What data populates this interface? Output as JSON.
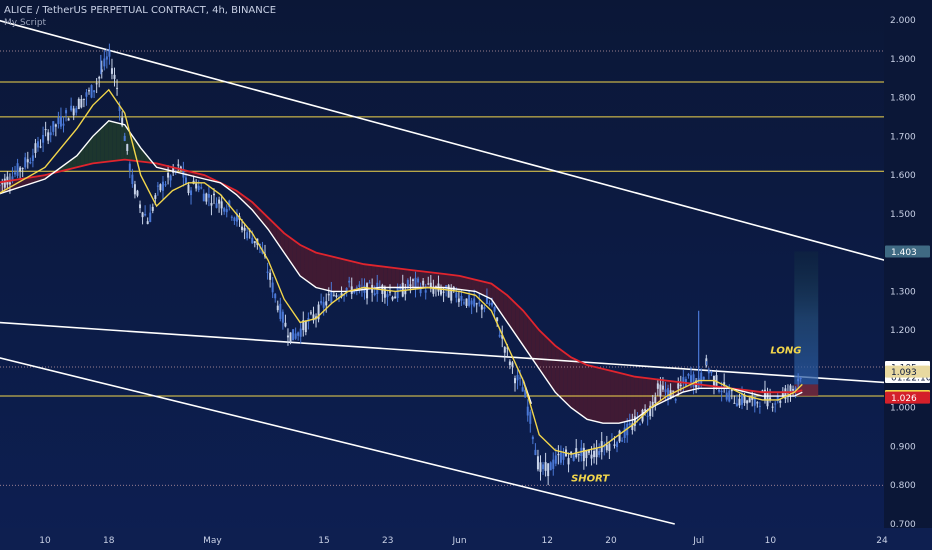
{
  "header": {
    "title": "ALICE / TetherUS PERPETUAL CONTRACT, 4h, BINANCE",
    "subtitle": "My Script"
  },
  "colors": {
    "background": "#0c1a3e",
    "level": "#f2d64b",
    "trend": "#ffffff",
    "ema_fast": "#f2d64b",
    "ema_mid": "#ffffff",
    "ema_slow": "#e0242d",
    "candle": "#c9d4ea",
    "candle_up": "#4a78d6",
    "fill_up": "#1f3a2c",
    "fill_down": "#4a1a30"
  },
  "chart_data": {
    "type": "candlestick",
    "title": "ALICE / TetherUS PERPETUAL CONTRACT, 4h, BINANCE",
    "xlabel": "",
    "ylabel": "",
    "ylim": [
      0.7,
      2.0
    ],
    "grid": false,
    "y_ticks": [
      "0.700",
      "0.800",
      "0.900",
      "1.000",
      "1.100",
      "1.200",
      "1.300",
      "1.400",
      "1.500",
      "1.600",
      "1.700",
      "1.800",
      "1.900",
      "2.000"
    ],
    "x_ticks": [
      "10",
      "18",
      "May",
      "15",
      "23",
      "Jun",
      "12",
      "20",
      "Jul",
      "10",
      "24"
    ],
    "x_tick_days": [
      10,
      18,
      31,
      45,
      53,
      62,
      73,
      81,
      92,
      101,
      115
    ],
    "x_range_days": [
      4,
      119
    ],
    "x_note": "days counted from Apr 1",
    "price_series": [
      [
        4,
        1.57
      ],
      [
        6,
        1.6
      ],
      [
        8,
        1.64
      ],
      [
        10,
        1.7
      ],
      [
        12,
        1.74
      ],
      [
        14,
        1.78
      ],
      [
        16,
        1.82
      ],
      [
        17,
        1.86
      ],
      [
        18,
        1.91
      ],
      [
        19,
        1.83
      ],
      [
        20,
        1.7
      ],
      [
        21,
        1.58
      ],
      [
        22,
        1.52
      ],
      [
        23,
        1.48
      ],
      [
        24,
        1.55
      ],
      [
        25,
        1.58
      ],
      [
        26,
        1.6
      ],
      [
        27,
        1.62
      ],
      [
        28,
        1.56
      ],
      [
        29,
        1.58
      ],
      [
        30,
        1.55
      ],
      [
        31,
        1.54
      ],
      [
        33,
        1.52
      ],
      [
        35,
        1.46
      ],
      [
        37,
        1.42
      ],
      [
        38,
        1.35
      ],
      [
        39,
        1.28
      ],
      [
        40,
        1.22
      ],
      [
        41,
        1.18
      ],
      [
        42,
        1.2
      ],
      [
        44,
        1.24
      ],
      [
        46,
        1.29
      ],
      [
        48,
        1.31
      ],
      [
        50,
        1.3
      ],
      [
        52,
        1.31
      ],
      [
        54,
        1.29
      ],
      [
        56,
        1.32
      ],
      [
        58,
        1.31
      ],
      [
        60,
        1.3
      ],
      [
        62,
        1.29
      ],
      [
        64,
        1.26
      ],
      [
        66,
        1.27
      ],
      [
        67,
        1.2
      ],
      [
        68,
        1.14
      ],
      [
        69,
        1.08
      ],
      [
        70,
        1.05
      ],
      [
        71,
        0.96
      ],
      [
        72,
        0.84
      ],
      [
        73,
        0.84
      ],
      [
        74,
        0.86
      ],
      [
        75,
        0.88
      ],
      [
        76,
        0.87
      ],
      [
        77,
        0.89
      ],
      [
        78,
        0.87
      ],
      [
        80,
        0.9
      ],
      [
        82,
        0.92
      ],
      [
        84,
        0.96
      ],
      [
        86,
        1.0
      ],
      [
        87,
        1.05
      ],
      [
        88,
        1.04
      ],
      [
        89,
        1.03
      ],
      [
        90,
        1.06
      ],
      [
        91,
        1.08
      ],
      [
        92,
        1.06
      ],
      [
        93,
        1.11
      ],
      [
        94,
        1.07
      ],
      [
        95,
        1.05
      ],
      [
        96,
        1.03
      ],
      [
        97,
        1.02
      ],
      [
        98,
        1.02
      ],
      [
        99,
        1.01
      ],
      [
        100,
        1.03
      ],
      [
        101,
        1.02
      ],
      [
        102,
        1.02
      ],
      [
        103,
        1.04
      ],
      [
        104,
        1.05
      ],
      [
        105,
        1.1
      ]
    ],
    "ema_fast": [
      [
        4,
        1.55
      ],
      [
        10,
        1.62
      ],
      [
        14,
        1.72
      ],
      [
        16,
        1.78
      ],
      [
        18,
        1.82
      ],
      [
        20,
        1.76
      ],
      [
        22,
        1.6
      ],
      [
        24,
        1.52
      ],
      [
        26,
        1.56
      ],
      [
        28,
        1.58
      ],
      [
        30,
        1.58
      ],
      [
        32,
        1.55
      ],
      [
        34,
        1.5
      ],
      [
        36,
        1.45
      ],
      [
        38,
        1.38
      ],
      [
        40,
        1.28
      ],
      [
        42,
        1.22
      ],
      [
        44,
        1.23
      ],
      [
        46,
        1.27
      ],
      [
        48,
        1.3
      ],
      [
        50,
        1.31
      ],
      [
        54,
        1.3
      ],
      [
        58,
        1.31
      ],
      [
        62,
        1.3
      ],
      [
        64,
        1.29
      ],
      [
        66,
        1.25
      ],
      [
        68,
        1.16
      ],
      [
        70,
        1.07
      ],
      [
        71,
        1.0
      ],
      [
        72,
        0.93
      ],
      [
        74,
        0.89
      ],
      [
        76,
        0.88
      ],
      [
        78,
        0.89
      ],
      [
        80,
        0.9
      ],
      [
        82,
        0.93
      ],
      [
        84,
        0.96
      ],
      [
        86,
        1.0
      ],
      [
        88,
        1.03
      ],
      [
        90,
        1.05
      ],
      [
        92,
        1.07
      ],
      [
        94,
        1.07
      ],
      [
        96,
        1.05
      ],
      [
        98,
        1.03
      ],
      [
        100,
        1.02
      ],
      [
        102,
        1.02
      ],
      [
        104,
        1.04
      ],
      [
        105,
        1.06
      ]
    ],
    "ema_mid": [
      [
        4,
        1.55
      ],
      [
        10,
        1.59
      ],
      [
        14,
        1.65
      ],
      [
        16,
        1.7
      ],
      [
        18,
        1.74
      ],
      [
        20,
        1.73
      ],
      [
        22,
        1.67
      ],
      [
        24,
        1.62
      ],
      [
        28,
        1.6
      ],
      [
        30,
        1.59
      ],
      [
        32,
        1.58
      ],
      [
        34,
        1.55
      ],
      [
        36,
        1.51
      ],
      [
        38,
        1.46
      ],
      [
        40,
        1.4
      ],
      [
        42,
        1.34
      ],
      [
        44,
        1.31
      ],
      [
        46,
        1.3
      ],
      [
        48,
        1.3
      ],
      [
        52,
        1.31
      ],
      [
        56,
        1.31
      ],
      [
        60,
        1.31
      ],
      [
        64,
        1.3
      ],
      [
        66,
        1.28
      ],
      [
        68,
        1.22
      ],
      [
        70,
        1.16
      ],
      [
        72,
        1.1
      ],
      [
        74,
        1.04
      ],
      [
        76,
        1.0
      ],
      [
        78,
        0.97
      ],
      [
        80,
        0.96
      ],
      [
        82,
        0.96
      ],
      [
        84,
        0.97
      ],
      [
        86,
        1.0
      ],
      [
        88,
        1.02
      ],
      [
        90,
        1.04
      ],
      [
        92,
        1.05
      ],
      [
        94,
        1.05
      ],
      [
        96,
        1.05
      ],
      [
        98,
        1.04
      ],
      [
        100,
        1.03
      ],
      [
        102,
        1.03
      ],
      [
        104,
        1.03
      ],
      [
        105,
        1.04
      ]
    ],
    "ema_slow": [
      [
        4,
        1.58
      ],
      [
        10,
        1.6
      ],
      [
        14,
        1.62
      ],
      [
        16,
        1.63
      ],
      [
        18,
        1.635
      ],
      [
        20,
        1.64
      ],
      [
        22,
        1.635
      ],
      [
        24,
        1.63
      ],
      [
        26,
        1.62
      ],
      [
        28,
        1.61
      ],
      [
        30,
        1.6
      ],
      [
        32,
        1.58
      ],
      [
        34,
        1.56
      ],
      [
        36,
        1.53
      ],
      [
        38,
        1.49
      ],
      [
        40,
        1.45
      ],
      [
        42,
        1.42
      ],
      [
        44,
        1.4
      ],
      [
        46,
        1.39
      ],
      [
        48,
        1.38
      ],
      [
        50,
        1.37
      ],
      [
        52,
        1.365
      ],
      [
        54,
        1.36
      ],
      [
        56,
        1.355
      ],
      [
        58,
        1.35
      ],
      [
        60,
        1.345
      ],
      [
        62,
        1.34
      ],
      [
        64,
        1.33
      ],
      [
        66,
        1.32
      ],
      [
        68,
        1.29
      ],
      [
        70,
        1.25
      ],
      [
        72,
        1.2
      ],
      [
        74,
        1.16
      ],
      [
        76,
        1.13
      ],
      [
        78,
        1.11
      ],
      [
        80,
        1.1
      ],
      [
        82,
        1.09
      ],
      [
        84,
        1.08
      ],
      [
        86,
        1.075
      ],
      [
        88,
        1.07
      ],
      [
        90,
        1.065
      ],
      [
        92,
        1.06
      ],
      [
        94,
        1.055
      ],
      [
        96,
        1.05
      ],
      [
        98,
        1.045
      ],
      [
        100,
        1.04
      ],
      [
        102,
        1.04
      ],
      [
        104,
        1.04
      ],
      [
        105,
        1.045
      ]
    ],
    "spikes": [
      [
        17,
        1.91
      ],
      [
        92,
        1.25
      ],
      [
        93,
        1.12
      ]
    ],
    "horizontal_levels": [
      {
        "value": 1.84,
        "label": "1.840"
      },
      {
        "value": 1.75,
        "label": "1.750"
      },
      {
        "value": 1.61,
        "label": "1.610"
      },
      {
        "value": 1.03,
        "label": "1.030"
      }
    ],
    "dotted_levels": [
      1.92,
      1.105,
      0.8
    ],
    "trendlines": [
      {
        "from": [
          4,
          2.0
        ],
        "to": [
          119,
          1.36
        ]
      },
      {
        "from": [
          4,
          1.22
        ],
        "to": [
          119,
          1.06
        ]
      },
      {
        "from": [
          4,
          1.13
        ],
        "to": [
          89,
          0.7
        ]
      },
      {
        "from": [
          70,
          1.07
        ],
        "to": [
          71,
          1.01
        ]
      }
    ],
    "long_position": {
      "entry_day": 104,
      "exit_day": 107,
      "entry": 1.06,
      "target": 1.403,
      "stop": 1.03
    },
    "price_badges": [
      {
        "value": 1.403,
        "label": "1.403",
        "bg": "#3f6a83",
        "fg": "#ffffff"
      },
      {
        "value": 1.105,
        "label": "1.105",
        "sublabel": "01:22:10",
        "bg": "#ffffff",
        "fg": "#0c1a3e"
      },
      {
        "value": 1.093,
        "label": "1.093",
        "bg": "#e8d9a0",
        "fg": "#0c1a3e"
      },
      {
        "value": 1.03,
        "label": "1.030",
        "bg": "#f2d64b",
        "fg": "#0c1a3e"
      },
      {
        "value": 1.026,
        "label": "1.026",
        "bg": "#d4202a",
        "fg": "#ffffff"
      }
    ],
    "annotations": [
      {
        "text": "LONG",
        "day": 101,
        "value": 1.14
      },
      {
        "text": "SHORT",
        "day": 76,
        "value": 0.81
      }
    ]
  }
}
